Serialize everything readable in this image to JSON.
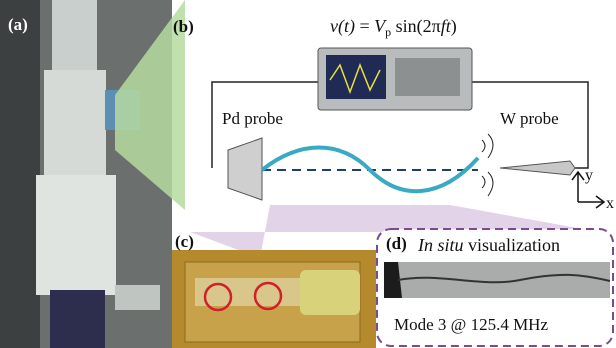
{
  "panels": {
    "a": {
      "label": "(a)"
    },
    "b": {
      "label": "(b)",
      "equation": [
        "v(t)",
        " = ",
        "V",
        "p",
        " sin(2π",
        "ft",
        ")"
      ],
      "left_probe": "Pd probe",
      "right_probe": "W probe",
      "axis_y": "y",
      "axis_x": "x"
    },
    "c": {
      "label": "(c)"
    },
    "d": {
      "label": "(d)",
      "title": [
        "In situ",
        " visualization"
      ],
      "caption": "Mode 3 @ 125.4 MHz"
    }
  }
}
